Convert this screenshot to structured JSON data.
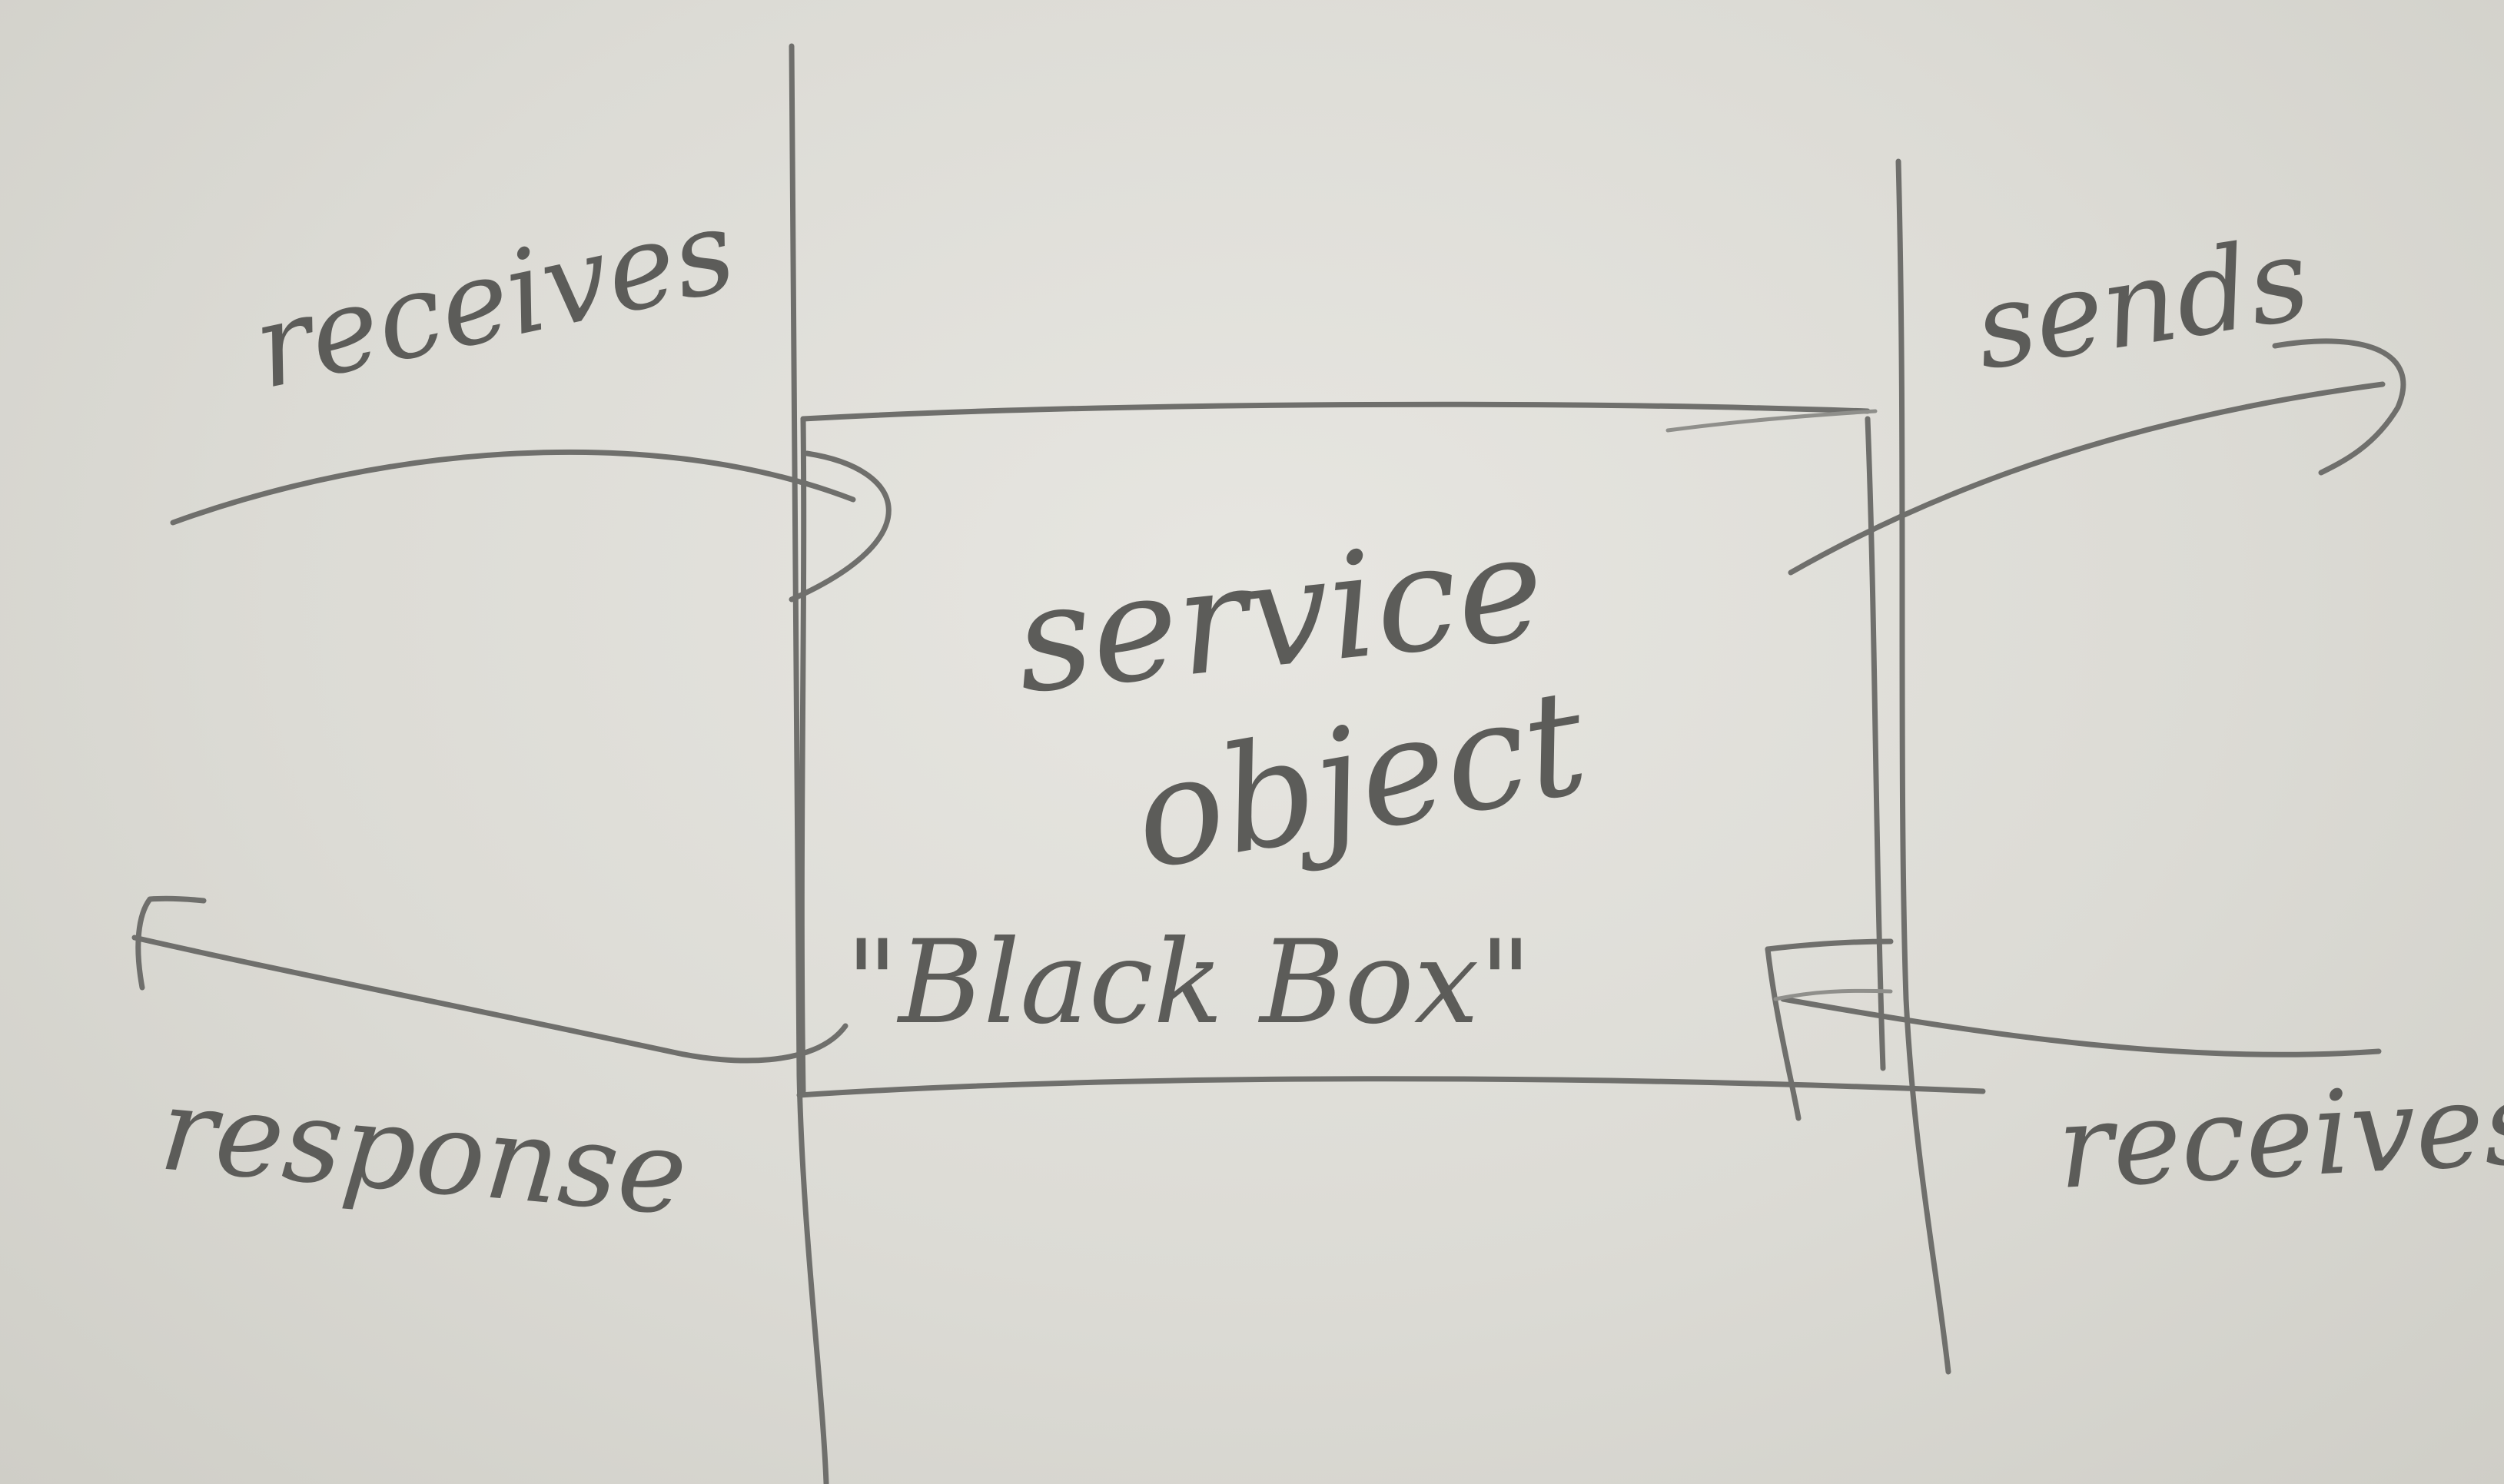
{
  "diagram": {
    "labels": {
      "receives_in": "receives",
      "sends": "sends",
      "response": "response",
      "receives_out": "receives",
      "box_line1": "service",
      "box_line2": "object",
      "box_caption": "\"Black Box\""
    },
    "colors": {
      "paper": "#dcdbd5",
      "pencil": "#6f6f6c"
    }
  }
}
